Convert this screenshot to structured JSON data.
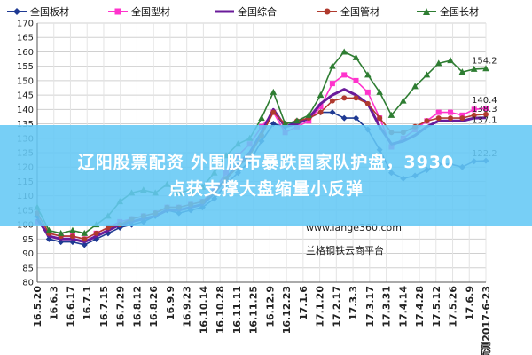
{
  "legend": [
    {
      "label": "全国板材",
      "color": "#1f3a93"
    },
    {
      "label": "全国型材",
      "color": "#ff33cc"
    },
    {
      "label": "全国综合",
      "color": "#6a1b9a"
    },
    {
      "label": "全国管材",
      "color": "#b03a2e"
    },
    {
      "label": "全国长材",
      "color": "#2e7d32"
    }
  ],
  "banner": {
    "line1": "辽阳股票配资 外围股市暴跌国家队护盘，3930",
    "line2": "点获支撑大盘缩量小反弹"
  },
  "watermark": {
    "site": "www.lange360.com",
    "brand": "兰格钢铁云商平台"
  },
  "chart_data": {
    "type": "line",
    "ylim": [
      80,
      170
    ],
    "yticks": [
      80,
      85,
      90,
      95,
      100,
      105,
      110,
      115,
      120,
      125,
      130,
      135,
      140,
      145,
      150,
      155,
      160,
      165,
      170
    ],
    "x_tick_labels": [
      "16.5.20",
      "16.6.3",
      "16.6.17",
      "16.7.1",
      "16.7.15",
      "16.7.29",
      "16.8.12",
      "16.8.26",
      "16.9.9",
      "16.9.23",
      "16.10.14",
      "16.10.28",
      "16.11.11",
      "16.11.25",
      "16.12.9",
      "16.12.23",
      "17.1.6",
      "17.1.20",
      "17.2.17",
      "17.3.3",
      "17.3.17",
      "17.3.31",
      "17.4.14",
      "17.4.28",
      "17.5.12",
      "17.5.26",
      "17.6.9",
      "预测2017-6-23"
    ],
    "grid": true,
    "end_labels": [
      "154.2",
      "140.4",
      "138.3",
      "137.1",
      "122.2"
    ],
    "series": [
      {
        "name": "全国板材",
        "color": "#1f3a93",
        "marker": "diamond",
        "values": [
          103,
          95,
          94,
          94,
          93,
          95,
          97,
          99,
          100,
          101,
          103,
          105,
          104,
          105,
          106,
          109,
          114,
          118,
          122,
          129,
          135,
          134,
          136,
          137,
          139,
          139,
          137,
          137,
          133,
          126,
          118,
          116,
          117,
          119,
          121,
          121,
          120,
          122,
          122.2
        ]
      },
      {
        "name": "全国型材",
        "color": "#ff33cc",
        "marker": "square",
        "values": [
          101,
          97,
          96,
          96,
          95,
          97,
          99,
          101,
          102,
          103,
          104,
          106,
          106,
          107,
          108,
          112,
          118,
          124,
          128,
          134,
          139,
          132,
          134,
          136,
          141,
          149,
          152,
          150,
          146,
          137,
          127,
          130,
          133,
          136,
          139,
          139,
          138,
          140,
          140.4
        ]
      },
      {
        "name": "全国综合",
        "color": "#6a1b9a",
        "marker": "none",
        "values": [
          102,
          96,
          95,
          95,
          94,
          96,
          98,
          100,
          101,
          102,
          103,
          105,
          105,
          106,
          107,
          111,
          116,
          121,
          125,
          132,
          140,
          134,
          135,
          137,
          142,
          145,
          147,
          145,
          142,
          134,
          128,
          129,
          131,
          134,
          136,
          136,
          136,
          137,
          137.1
        ]
      },
      {
        "name": "全国管材",
        "color": "#b03a2e",
        "marker": "circle",
        "values": [
          104,
          97,
          96,
          96,
          95,
          97,
          99,
          100,
          102,
          103,
          104,
          106,
          106,
          107,
          108,
          111,
          116,
          120,
          124,
          131,
          139,
          135,
          136,
          137,
          139,
          143,
          144,
          144,
          142,
          137,
          132,
          132,
          134,
          136,
          137,
          137,
          137,
          138,
          138.3
        ]
      },
      {
        "name": "全国长材",
        "color": "#2e7d32",
        "marker": "triangle",
        "values": [
          106,
          98,
          97,
          98,
          97,
          100,
          103,
          108,
          111,
          112,
          111,
          114,
          111,
          112,
          113,
          118,
          124,
          128,
          130,
          137,
          146,
          135,
          136,
          138,
          145,
          155,
          160,
          158,
          152,
          146,
          138,
          143,
          148,
          152,
          156,
          157,
          153,
          154,
          154.2
        ]
      }
    ]
  }
}
